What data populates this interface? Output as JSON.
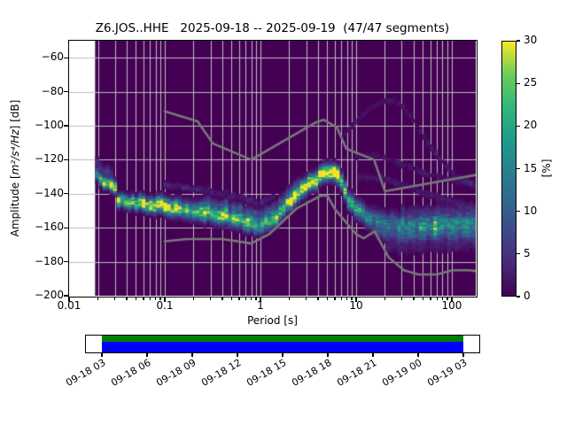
{
  "header": {
    "title": "Z6.JOS..HHE   2025-09-18 -- 2025-09-19  (47/47 segments)"
  },
  "chart_data": {
    "type": "heatmap",
    "subtype": "ppsd-probabilistic-power-spectral-density",
    "title": "Z6.JOS..HHE   2025-09-18 -- 2025-09-19  (47/47 segments)",
    "xlabel": "Period [s]",
    "ylabel": "Amplitude [m²/s⁴/Hz] [dB]",
    "ylabel_parts": {
      "prefix": "Amplitude [",
      "math": "m²/s⁴/Hz",
      "suffix": "] [dB]"
    },
    "x_scale": "log",
    "xlim": [
      0.01,
      178
    ],
    "ylim": [
      -200,
      -50
    ],
    "grid": true,
    "grid_color": "#bdbdbd",
    "background_color": "#440154",
    "x_ticks": {
      "values": [
        0.01,
        0.1,
        1,
        10,
        100
      ],
      "labels": [
        "0.01",
        "0.1",
        "1",
        "10",
        "100"
      ]
    },
    "y_ticks": {
      "values": [
        -200,
        -180,
        -160,
        -140,
        -120,
        -100,
        -80,
        -60
      ],
      "labels": [
        "−200",
        "−180",
        "−160",
        "−140",
        "−120",
        "−100",
        "−80",
        "−60"
      ]
    },
    "colormap": "viridis",
    "viridis_stops": [
      "#440154",
      "#482878",
      "#3e4989",
      "#31688e",
      "#26828e",
      "#1f9e89",
      "#35b779",
      "#6ece58",
      "#fde725"
    ],
    "colorbar": {
      "label": "[%]",
      "min": 0,
      "max": 30,
      "ticks": [
        0,
        5,
        10,
        15,
        20,
        25,
        30
      ]
    },
    "data_period_range": [
      0.0187,
      178
    ],
    "period_step_decades": 0.0376,
    "db_bin_width": 1,
    "psd_mode_ridge_points": [
      [
        0.0187,
        -129.5
      ],
      [
        0.0235,
        -134
      ],
      [
        0.0295,
        -137.5
      ],
      [
        0.0305,
        -143.5
      ],
      [
        0.05,
        -145.5
      ],
      [
        0.1,
        -147
      ],
      [
        0.15,
        -148
      ],
      [
        0.25,
        -150.5
      ],
      [
        0.4,
        -152.5
      ],
      [
        0.6,
        -155
      ],
      [
        0.9,
        -157.5
      ],
      [
        1.2,
        -156.5
      ],
      [
        1.7,
        -148
      ],
      [
        2.7,
        -137
      ],
      [
        4.0,
        -129.5
      ],
      [
        4.8,
        -126.3
      ],
      [
        5.8,
        -127.5
      ],
      [
        6.5,
        -130
      ],
      [
        7.0,
        -136
      ],
      [
        7.6,
        -141.5
      ],
      [
        8.5,
        -145
      ],
      [
        10,
        -149
      ],
      [
        12,
        -152.5
      ],
      [
        15,
        -156
      ],
      [
        20,
        -158
      ],
      [
        30,
        -159
      ],
      [
        45,
        -158.5
      ],
      [
        70,
        -158
      ],
      [
        120,
        -157.5
      ],
      [
        178,
        -157
      ]
    ],
    "peak_probability_profile": [
      [
        0.0187,
        22
      ],
      [
        0.028,
        26
      ],
      [
        0.032,
        28
      ],
      [
        0.1,
        28
      ],
      [
        0.16,
        25
      ],
      [
        0.5,
        23
      ],
      [
        1.0,
        20
      ],
      [
        1.4,
        23
      ],
      [
        2.8,
        28
      ],
      [
        4.0,
        30
      ],
      [
        6.0,
        30
      ],
      [
        7.0,
        26
      ],
      [
        9.0,
        17
      ],
      [
        12,
        14
      ],
      [
        20,
        13
      ],
      [
        40,
        15
      ],
      [
        178,
        15
      ]
    ],
    "spread_sigma_profile": [
      [
        0.0187,
        2.0
      ],
      [
        0.05,
        2.6
      ],
      [
        0.2,
        3.2
      ],
      [
        1.0,
        3.2
      ],
      [
        5.0,
        2.9
      ],
      [
        10,
        3.2
      ],
      [
        20,
        4.0
      ],
      [
        178,
        4.2
      ]
    ],
    "secondary_traces": [
      {
        "name": "left-edge-upper-wing",
        "relative_db": 7,
        "range": [
          0.0187,
          0.028
        ],
        "prob": 5,
        "sigma": 2.0
      },
      {
        "name": "upper-parallel-trace",
        "relative_db": 13,
        "range": [
          0.09,
          1.4
        ],
        "prob": 3.2,
        "sigma": 1.3
      },
      {
        "name": "upper-parallel-trace-2",
        "relative_db": 7,
        "range": [
          0.25,
          2.6
        ],
        "prob": 5,
        "sigma": 1.6
      },
      {
        "name": "event-hump",
        "points": [
          [
            7,
            -106
          ],
          [
            10,
            -96
          ],
          [
            14,
            -88.5
          ],
          [
            19,
            -85.5
          ],
          [
            26,
            -85.5
          ],
          [
            34,
            -93
          ],
          [
            45,
            -103
          ],
          [
            60,
            -114
          ],
          [
            80,
            -123
          ],
          [
            110,
            -130
          ],
          [
            178,
            -135
          ]
        ],
        "prob": 2.0,
        "sigma": 1.3
      },
      {
        "name": "event-trace-mid",
        "points": [
          [
            9,
            -118
          ],
          [
            15,
            -117
          ],
          [
            25,
            -121
          ],
          [
            50,
            -128
          ],
          [
            100,
            -132
          ],
          [
            178,
            -135
          ]
        ],
        "prob": 1.8,
        "sigma": 1.4
      },
      {
        "name": "event-trace-low",
        "points": [
          [
            10,
            -130
          ],
          [
            20,
            -131
          ],
          [
            50,
            -140
          ],
          [
            178,
            -148
          ]
        ],
        "prob": 2.2,
        "sigma": 1.6
      },
      {
        "name": "below-band-long",
        "relative_db": -7,
        "range": [
          14,
          178
        ],
        "prob": 4.5,
        "sigma": 2.2
      },
      {
        "name": "below-band-scatter",
        "relative_db": -13,
        "range": [
          20,
          178
        ],
        "prob": 2.2,
        "sigma": 2.5
      },
      {
        "name": "above-band-long",
        "relative_db": 9,
        "range": [
          28,
          178
        ],
        "prob": 2.5,
        "sigma": 2.0
      }
    ],
    "noise_models": {
      "color": "#787878",
      "line_width": 2.6,
      "nhnm": [
        [
          0.1,
          -91.5
        ],
        [
          0.22,
          -97.4
        ],
        [
          0.32,
          -110.5
        ],
        [
          0.8,
          -120.0
        ],
        [
          3.8,
          -98.0
        ],
        [
          4.6,
          -96.5
        ],
        [
          6.3,
          -101.0
        ],
        [
          7.9,
          -113.5
        ],
        [
          15.4,
          -120.0
        ],
        [
          20.0,
          -138.5
        ],
        [
          354.8,
          -126.0
        ]
      ],
      "nlnm": [
        [
          0.1,
          -168.0
        ],
        [
          0.17,
          -166.7
        ],
        [
          0.4,
          -166.7
        ],
        [
          0.8,
          -169.2
        ],
        [
          1.24,
          -163.7
        ],
        [
          2.4,
          -148.6
        ],
        [
          4.3,
          -141.1
        ],
        [
          5.0,
          -141.1
        ],
        [
          6.0,
          -149.0
        ],
        [
          10.0,
          -163.8
        ],
        [
          12.0,
          -166.2
        ],
        [
          15.6,
          -162.1
        ],
        [
          21.9,
          -177.5
        ],
        [
          31.6,
          -185.0
        ],
        [
          45.0,
          -187.5
        ],
        [
          70.0,
          -187.5
        ],
        [
          101.0,
          -185.0
        ],
        [
          154.0,
          -185.0
        ],
        [
          328.0,
          -187.5
        ]
      ]
    }
  },
  "timeline": {
    "tick_labels": [
      "09-18 03",
      "09-18 06",
      "09-18 09",
      "09-18 12",
      "09-18 15",
      "09-18 18",
      "09-18 21",
      "09-19 00",
      "09-19 03"
    ],
    "coverage_color_top": "#008000",
    "coverage_color_bottom": "#0000ff"
  }
}
